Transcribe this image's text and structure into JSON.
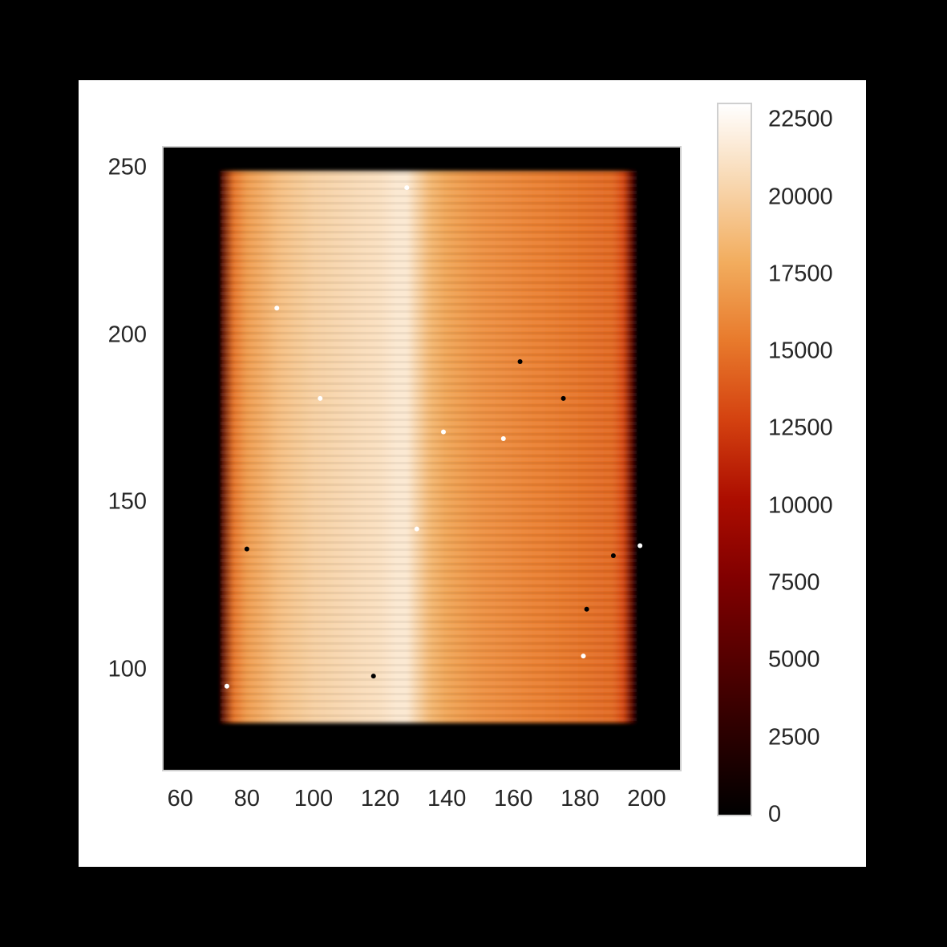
{
  "chart_data": {
    "type": "heatmap",
    "title": "",
    "xlabel": "",
    "ylabel": "",
    "xlim": [
      55,
      210
    ],
    "ylim": [
      70,
      256
    ],
    "xticks": [
      "60",
      "80",
      "100",
      "120",
      "140",
      "160",
      "180",
      "200"
    ],
    "yticks": [
      "100",
      "150",
      "200",
      "250"
    ],
    "grid": false,
    "colorbar": {
      "cmap": "gist_heat",
      "range": [
        0,
        23000
      ],
      "ticks": [
        "0",
        "2500",
        "5000",
        "7500",
        "10000",
        "12500",
        "15000",
        "17500",
        "20000",
        "22500"
      ],
      "colors": [
        "#000000",
        "#2a0000",
        "#560000",
        "#810000",
        "#ac0d00",
        "#d44210",
        "#e87a2c",
        "#f2ad5e",
        "#f8d7b0",
        "#ffffff"
      ]
    },
    "illuminated_region": {
      "x_range": [
        72,
        197
      ],
      "y_range": [
        84,
        249
      ],
      "background_value": 0
    },
    "column_profile": {
      "x": [
        60,
        68,
        72,
        76,
        80,
        90,
        100,
        110,
        120,
        125,
        128,
        135,
        140,
        150,
        160,
        170,
        180,
        190,
        193,
        196,
        200,
        210
      ],
      "values": [
        0,
        500,
        4000,
        15000,
        17000,
        19000,
        20000,
        20500,
        21000,
        21500,
        21500,
        18500,
        17500,
        16500,
        16000,
        15500,
        15000,
        14500,
        13000,
        4000,
        0,
        0
      ]
    },
    "hot_pixels": [
      [
        89,
        208
      ],
      [
        102,
        181
      ],
      [
        139,
        171
      ],
      [
        157,
        169
      ],
      [
        131,
        142
      ],
      [
        74,
        95
      ],
      [
        181,
        104
      ],
      [
        198,
        137
      ],
      [
        128,
        244
      ]
    ],
    "dead_pixels": [
      [
        162,
        192
      ],
      [
        175,
        181
      ],
      [
        80,
        136
      ],
      [
        190,
        134
      ],
      [
        182,
        118
      ],
      [
        118,
        98
      ],
      [
        69,
        88
      ]
    ]
  }
}
